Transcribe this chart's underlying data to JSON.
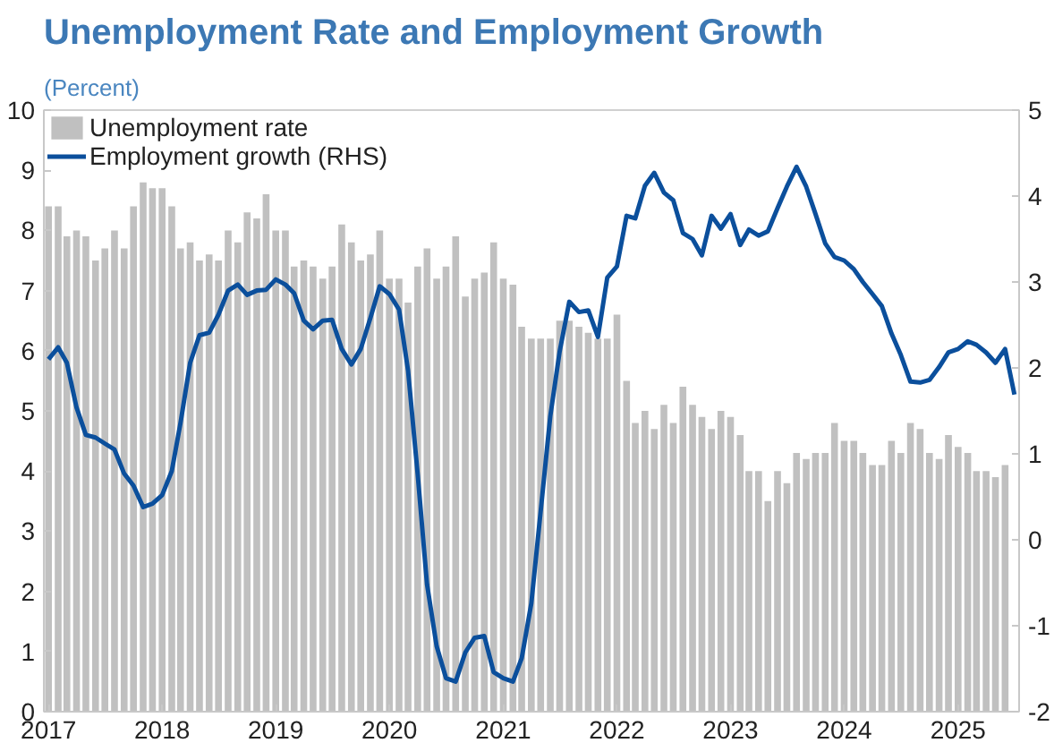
{
  "chart_data": {
    "type": "bar",
    "title": "Unemployment Rate and Employment Growth",
    "subtitle": "(Percent)",
    "x": [
      "2017-01",
      "2017-02",
      "2017-03",
      "2017-04",
      "2017-05",
      "2017-06",
      "2017-07",
      "2017-08",
      "2017-09",
      "2017-10",
      "2017-11",
      "2017-12",
      "2018-01",
      "2018-02",
      "2018-03",
      "2018-04",
      "2018-05",
      "2018-06",
      "2018-07",
      "2018-08",
      "2018-09",
      "2018-10",
      "2018-11",
      "2018-12",
      "2019-01",
      "2019-02",
      "2019-03",
      "2019-04",
      "2019-05",
      "2019-06",
      "2019-07",
      "2019-08",
      "2019-09",
      "2019-10",
      "2019-11",
      "2019-12",
      "2020-01",
      "2020-02",
      "2020-03",
      "2020-04",
      "2020-05",
      "2020-06",
      "2020-07",
      "2020-08",
      "2020-09",
      "2020-10",
      "2020-11",
      "2020-12",
      "2021-01",
      "2021-02",
      "2021-03",
      "2021-04",
      "2021-05",
      "2021-06",
      "2021-07",
      "2021-08",
      "2021-09",
      "2021-10",
      "2021-11",
      "2021-12",
      "2022-01",
      "2022-02",
      "2022-03",
      "2022-04",
      "2022-05",
      "2022-06",
      "2022-07",
      "2022-08",
      "2022-09",
      "2022-10",
      "2022-11",
      "2022-12",
      "2023-01",
      "2023-02",
      "2023-03",
      "2023-04",
      "2023-05",
      "2023-06",
      "2023-07",
      "2023-08",
      "2023-09",
      "2023-10",
      "2023-11",
      "2023-12",
      "2024-01",
      "2024-02",
      "2024-03",
      "2024-04",
      "2024-05",
      "2024-06",
      "2024-07",
      "2024-08",
      "2024-09",
      "2024-10",
      "2024-11",
      "2024-12",
      "2025-01",
      "2025-02",
      "2025-03",
      "2025-04",
      "2025-05",
      "2025-06",
      "2025-07"
    ],
    "series": [
      {
        "name": "Unemployment rate",
        "color": "#c0c0c0",
        "values": [
          8.4,
          8.4,
          7.9,
          8.0,
          7.9,
          7.5,
          7.7,
          8.0,
          7.7,
          8.4,
          8.8,
          8.7,
          8.7,
          8.4,
          7.7,
          7.8,
          7.5,
          7.6,
          7.5,
          8.0,
          7.8,
          8.3,
          8.2,
          8.6,
          8.0,
          8.0,
          7.4,
          7.5,
          7.4,
          7.2,
          7.4,
          8.1,
          7.8,
          7.5,
          7.6,
          8.0,
          7.2,
          7.2,
          6.8,
          7.4,
          7.7,
          7.2,
          7.4,
          7.9,
          6.9,
          7.2,
          7.3,
          7.8,
          7.2,
          7.1,
          6.4,
          6.2,
          6.2,
          6.2,
          6.5,
          6.5,
          6.4,
          6.3,
          6.2,
          6.2,
          6.6,
          5.5,
          4.8,
          5.0,
          4.7,
          5.1,
          4.8,
          5.4,
          5.1,
          4.9,
          4.7,
          5.0,
          4.9,
          4.6,
          4.0,
          4.0,
          3.5,
          4.0,
          3.8,
          4.3,
          4.2,
          4.3,
          4.3,
          4.8,
          4.5,
          4.5,
          4.3,
          4.1,
          4.1,
          4.5,
          4.3,
          4.8,
          4.7,
          4.3,
          4.2,
          4.6,
          4.4,
          4.3,
          4.0,
          4.0,
          3.9,
          4.1,
          null
        ]
      },
      {
        "name": "Employment growth (RHS)",
        "type": "line",
        "axis": "y2",
        "color": "#0b4f9c",
        "values": [
          2.1,
          2.24,
          2.06,
          1.54,
          1.22,
          1.19,
          1.12,
          1.05,
          0.77,
          0.63,
          0.38,
          0.42,
          0.52,
          0.8,
          1.36,
          2.06,
          2.38,
          2.41,
          2.62,
          2.9,
          2.97,
          2.85,
          2.9,
          2.91,
          3.03,
          2.97,
          2.87,
          2.55,
          2.45,
          2.55,
          2.56,
          2.22,
          2.04,
          2.22,
          2.58,
          2.95,
          2.86,
          2.68,
          1.97,
          0.76,
          -0.52,
          -1.24,
          -1.61,
          -1.65,
          -1.31,
          -1.14,
          -1.12,
          -1.54,
          -1.61,
          -1.65,
          -1.38,
          -0.74,
          0.33,
          1.44,
          2.19,
          2.77,
          2.65,
          2.67,
          2.36,
          3.05,
          3.18,
          3.77,
          3.74,
          4.12,
          4.27,
          4.04,
          3.95,
          3.57,
          3.5,
          3.31,
          3.77,
          3.62,
          3.79,
          3.43,
          3.61,
          3.54,
          3.59,
          3.86,
          4.11,
          4.34,
          4.11,
          3.79,
          3.45,
          3.29,
          3.25,
          3.15,
          3.0,
          2.86,
          2.72,
          2.4,
          2.15,
          1.84,
          1.83,
          1.86,
          2.01,
          2.18,
          2.22,
          2.31,
          2.27,
          2.18,
          2.06,
          2.22,
          1.69
        ]
      }
    ],
    "xlim": [
      "2016-12-17",
      "2025-07-16"
    ],
    "xticks": [
      "2017",
      "2018",
      "2019",
      "2020",
      "2021",
      "2022",
      "2023",
      "2024",
      "2025"
    ],
    "ylim": [
      0,
      10
    ],
    "yticks": [
      0,
      1,
      2,
      3,
      4,
      5,
      6,
      7,
      8,
      9,
      10
    ],
    "y2lim": [
      -2,
      5
    ],
    "y2ticks": [
      -2,
      -1,
      0,
      1,
      2,
      3,
      4,
      5
    ],
    "legend": "top left",
    "grid": false
  }
}
